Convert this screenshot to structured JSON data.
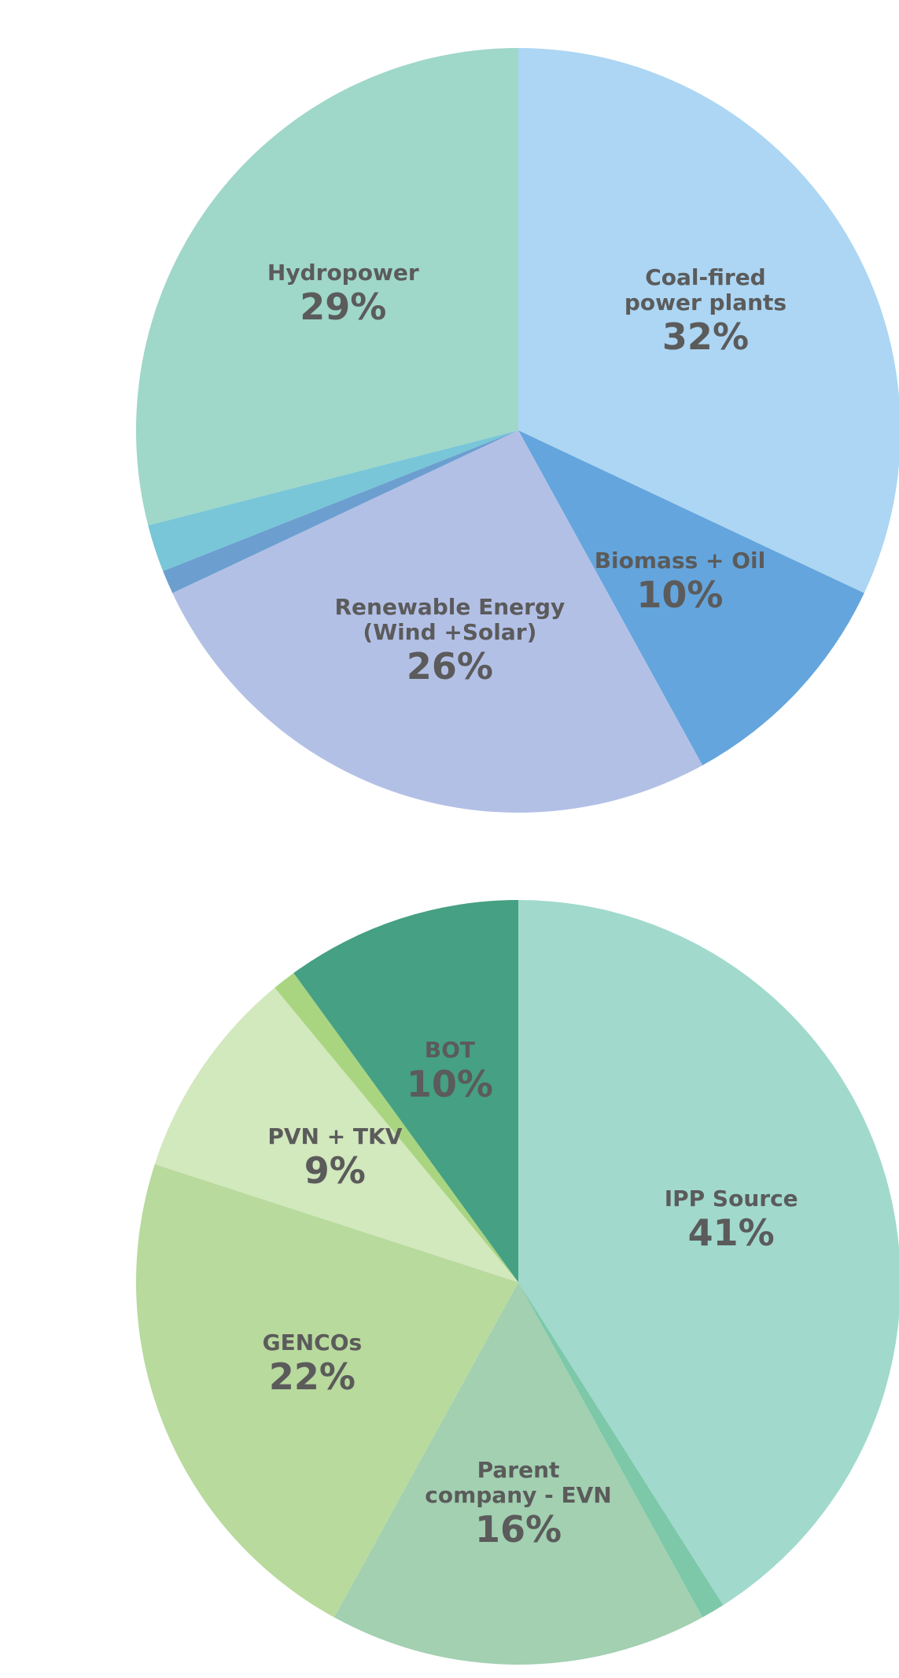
{
  "chart_data": [
    {
      "type": "pie",
      "categories": [
        "Coal-fired power plants",
        "Biomass + Oil",
        "Renewable Energy\n(Wind +Solar)",
        null,
        null,
        "Hydropower"
      ],
      "values": [
        32,
        10,
        26,
        1,
        2,
        29
      ],
      "value_labels": [
        "32%",
        "10%",
        "26%",
        null,
        null,
        "29%"
      ],
      "colors": [
        "#acd6f3",
        "#64a5dd",
        "#b3c0e6",
        "#6c9fcf",
        "#78c6d8",
        "#9fd7c9"
      ]
    },
    {
      "type": "pie",
      "categories": [
        "IPP Source",
        null,
        "Parent\ncompany - EVN",
        "GENCOs",
        "PVN + TKV",
        null,
        "BOT"
      ],
      "values": [
        41,
        1,
        16,
        22,
        9,
        1,
        10
      ],
      "value_labels": [
        "41%",
        null,
        "16%",
        "22%",
        "9%",
        null,
        "10%"
      ],
      "colors": [
        "#a1d9cd",
        "#7cc8a9",
        "#a2d0b1",
        "#b8da9d",
        "#d2e8bd",
        "#a9d581",
        "#46a083"
      ]
    }
  ]
}
